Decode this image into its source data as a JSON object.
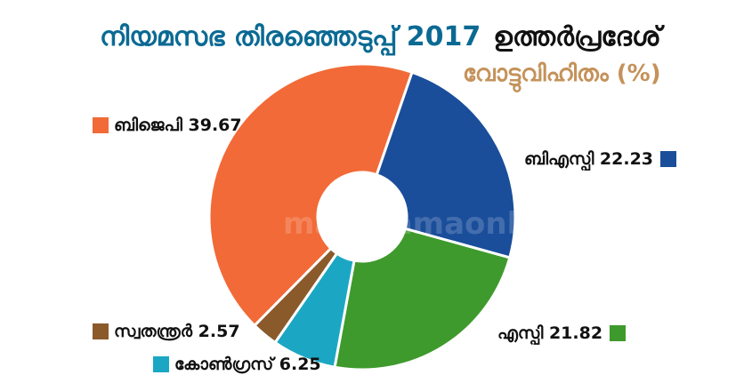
{
  "header": {
    "title": "നിയമസഭ തിരഞ്ഞെടുപ്പ് 2017",
    "region": "ഉത്തർപ്രദേശ്",
    "subtitle": "വോട്ടുവിഹിതം (%)"
  },
  "watermark": "manoramaonline",
  "chart_data": {
    "type": "pie",
    "style": "donut",
    "title": "നിയമസഭ തിരഞ്ഞെടുപ്പ് 2017 ഉത്തർപ്രദേശ്",
    "subtitle": "വോട്ടുവിഹിതം (%)",
    "categories": [
      "ബിജെപി",
      "ബിഎസ്പി",
      "എസ്പി",
      "കോൺഗ്രസ്",
      "സ്വതന്ത്രർ"
    ],
    "values": [
      39.67,
      22.23,
      21.82,
      6.25,
      2.57
    ],
    "colors": [
      "#f26a37",
      "#1a4e9a",
      "#3e9a2c",
      "#1ba7c4",
      "#8a5a2b"
    ],
    "labels": [
      "ബിജെപി 39.67",
      "ബിഎസ്പി 22.23",
      "എസ്പി 21.82",
      "കോൺഗ്രസ് 6.25",
      "സ്വതന്ത്രർ 2.57"
    ]
  }
}
